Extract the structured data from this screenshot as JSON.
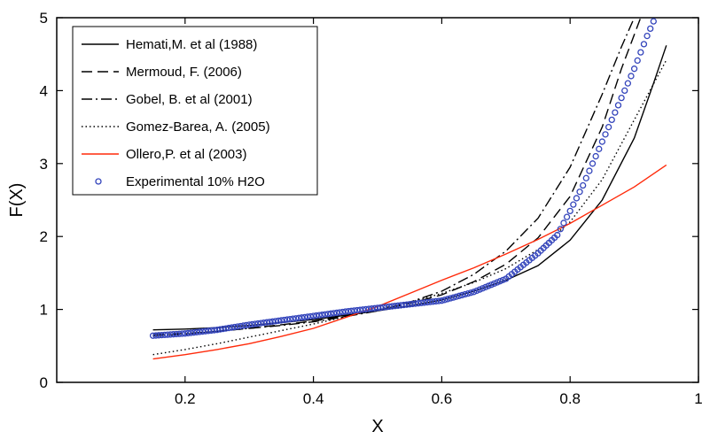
{
  "chart_data": {
    "type": "line",
    "xlabel": "X",
    "ylabel": "F(X)",
    "xlim": [
      0,
      1
    ],
    "ylim": [
      0,
      5
    ],
    "x_ticks": [
      0.2,
      0.4,
      0.6,
      0.8,
      1
    ],
    "x_tick_labels": [
      "0.2",
      "0.4",
      "0.6",
      "0.8",
      "1"
    ],
    "y_ticks": [
      0,
      1,
      2,
      3,
      4,
      5
    ],
    "y_tick_labels": [
      "0",
      "1",
      "2",
      "3",
      "4",
      "5"
    ],
    "grid": false,
    "legend_position": "top-left",
    "series": [
      {
        "name": "Hemati,M. et al (1988)",
        "style": "solid",
        "color": "#000000",
        "x": [
          0.15,
          0.2,
          0.25,
          0.3,
          0.35,
          0.4,
          0.45,
          0.5,
          0.55,
          0.6,
          0.65,
          0.7,
          0.75,
          0.8,
          0.85,
          0.9,
          0.93,
          0.95
        ],
        "y": [
          0.72,
          0.73,
          0.75,
          0.78,
          0.82,
          0.86,
          0.92,
          0.98,
          1.05,
          1.13,
          1.25,
          1.4,
          1.6,
          1.95,
          2.5,
          3.35,
          4.1,
          4.62
        ]
      },
      {
        "name": "Mermoud, F. (2006)",
        "style": "dashed",
        "color": "#000000",
        "x": [
          0.15,
          0.2,
          0.25,
          0.3,
          0.35,
          0.4,
          0.45,
          0.5,
          0.55,
          0.6,
          0.65,
          0.7,
          0.75,
          0.8,
          0.85,
          0.88,
          0.91
        ],
        "y": [
          0.64,
          0.66,
          0.7,
          0.74,
          0.79,
          0.84,
          0.91,
          0.99,
          1.08,
          1.2,
          1.38,
          1.62,
          1.98,
          2.55,
          3.5,
          4.3,
          5.0
        ]
      },
      {
        "name": "Gobel, B. et al (2001)",
        "style": "dashdot",
        "color": "#000000",
        "x": [
          0.15,
          0.2,
          0.25,
          0.3,
          0.35,
          0.4,
          0.45,
          0.5,
          0.55,
          0.6,
          0.65,
          0.7,
          0.75,
          0.8,
          0.85,
          0.88,
          0.9
        ],
        "y": [
          0.66,
          0.67,
          0.7,
          0.74,
          0.78,
          0.83,
          0.9,
          0.98,
          1.1,
          1.25,
          1.48,
          1.8,
          2.25,
          2.95,
          3.95,
          4.6,
          5.0
        ]
      },
      {
        "name": "Gomez-Barea, A. (2005)",
        "style": "dotted",
        "color": "#000000",
        "x": [
          0.15,
          0.2,
          0.25,
          0.3,
          0.35,
          0.4,
          0.45,
          0.5,
          0.55,
          0.6,
          0.65,
          0.7,
          0.75,
          0.8,
          0.85,
          0.9,
          0.95
        ],
        "y": [
          0.38,
          0.45,
          0.53,
          0.62,
          0.71,
          0.8,
          0.9,
          1.0,
          1.1,
          1.22,
          1.37,
          1.56,
          1.82,
          2.2,
          2.78,
          3.6,
          4.42
        ]
      },
      {
        "name": "Ollero,P. et al (2003)",
        "style": "solid",
        "color": "#ff2a0a",
        "x": [
          0.15,
          0.2,
          0.25,
          0.3,
          0.35,
          0.4,
          0.45,
          0.5,
          0.55,
          0.6,
          0.65,
          0.7,
          0.75,
          0.8,
          0.85,
          0.9,
          0.95
        ],
        "y": [
          0.32,
          0.38,
          0.45,
          0.53,
          0.63,
          0.74,
          0.89,
          1.04,
          1.22,
          1.4,
          1.57,
          1.76,
          1.96,
          2.18,
          2.43,
          2.68,
          2.98
        ]
      },
      {
        "name": "Experimental 10% H2O",
        "style": "markers",
        "color": "#3344bb",
        "x": [
          0.15,
          0.2,
          0.25,
          0.3,
          0.35,
          0.4,
          0.45,
          0.5,
          0.55,
          0.6,
          0.65,
          0.7,
          0.75,
          0.78,
          0.8,
          0.82,
          0.84,
          0.86,
          0.88,
          0.9,
          0.92,
          0.93
        ],
        "y": [
          0.64,
          0.67,
          0.72,
          0.79,
          0.85,
          0.91,
          0.97,
          1.02,
          1.07,
          1.12,
          1.24,
          1.42,
          1.77,
          2.02,
          2.35,
          2.7,
          3.1,
          3.5,
          3.9,
          4.3,
          4.75,
          4.95
        ]
      }
    ]
  }
}
